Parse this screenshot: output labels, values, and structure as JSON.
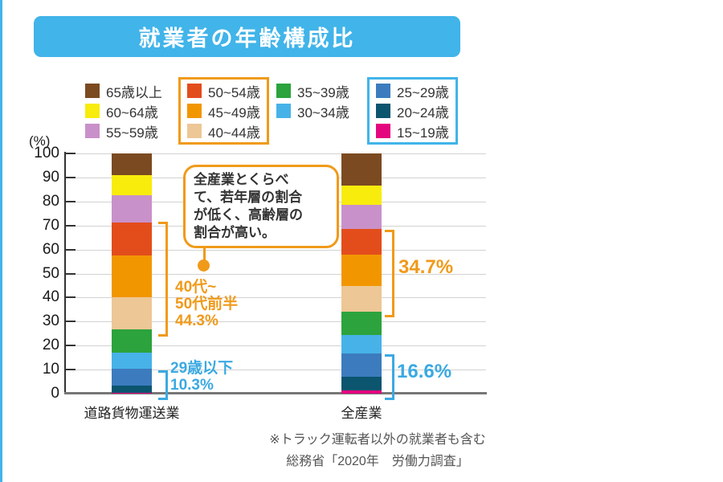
{
  "page": {
    "background": "#ffffff",
    "accent_blue": "#41b4e9",
    "accent_orange": "#f09a1a",
    "bracket_blue": "#3ba9e2"
  },
  "title": {
    "text": "就業者の年齢構成比"
  },
  "legend": {
    "columns": [
      {
        "boxed": false,
        "box_color": null,
        "items": [
          "65歳以上",
          "60~64歳",
          "55~59歳"
        ]
      },
      {
        "boxed": true,
        "box_color": "#f09a1a",
        "items": [
          "50~54歳",
          "45~49歳",
          "40~44歳"
        ]
      },
      {
        "boxed": false,
        "box_color": null,
        "items": [
          "35~39歳",
          "30~34歳"
        ]
      },
      {
        "boxed": true,
        "box_color": "#41b4e9",
        "items": [
          "25~29歳",
          "20~24歳",
          "15~19歳"
        ]
      }
    ]
  },
  "axis": {
    "unit_label": "(%)",
    "yticks": [
      0,
      10,
      20,
      30,
      40,
      50,
      60,
      70,
      80,
      90,
      100
    ],
    "ylim": [
      0,
      100
    ]
  },
  "chart_data": {
    "type": "bar",
    "stacked": true,
    "title": "就業者の年齢構成比",
    "categories": [
      "道路貨物運送業",
      "全産業"
    ],
    "ylabel": "(%)",
    "ylim": [
      0,
      100
    ],
    "grid": true,
    "series_bottom_to_top": [
      {
        "label": "15~19歳",
        "color": "#e4067e",
        "values": [
          0.5,
          1.3
        ]
      },
      {
        "label": "20~24歳",
        "color": "#0b556f",
        "values": [
          3.0,
          5.6
        ]
      },
      {
        "label": "25~29歳",
        "color": "#3c7cbe",
        "values": [
          6.8,
          9.7
        ]
      },
      {
        "label": "30~34歳",
        "color": "#47b2e8",
        "values": [
          6.9,
          7.8
        ]
      },
      {
        "label": "35~39歳",
        "color": "#2ca33c",
        "values": [
          9.7,
          9.6
        ]
      },
      {
        "label": "40~44歳",
        "color": "#edc795",
        "values": [
          13.1,
          11.0
        ]
      },
      {
        "label": "45~49歳",
        "color": "#f29600",
        "values": [
          17.5,
          13.0
        ]
      },
      {
        "label": "50~54歳",
        "color": "#e34d1c",
        "values": [
          13.7,
          10.7
        ]
      },
      {
        "label": "55~59歳",
        "color": "#c991c9",
        "values": [
          11.6,
          10.0
        ]
      },
      {
        "label": "60~64歳",
        "color": "#f8ec0c",
        "values": [
          8.2,
          8.0
        ]
      },
      {
        "label": "65歳以上",
        "color": "#7b4a21",
        "values": [
          9.0,
          13.3
        ]
      }
    ],
    "annotation_sums": [
      {
        "category": "道路貨物運送業",
        "range": "40~54歳",
        "label": "40代~50代前半",
        "value_pct": 44.3
      },
      {
        "category": "道路貨物運送業",
        "range": "15~29歳",
        "label": "29歳以下",
        "value_pct": 10.3
      },
      {
        "category": "全産業",
        "range": "40~54歳",
        "value_pct": 34.7
      },
      {
        "category": "全産業",
        "range": "15~29歳",
        "value_pct": 16.6
      }
    ]
  },
  "callout": {
    "lines": [
      "全産業とくらべ",
      "て、若年層の割合",
      "が低く、高齢層の",
      "割合が高い。"
    ]
  },
  "brackets": {
    "left_orange": {
      "lines": [
        "40代~",
        "50代前半",
        "44.3%"
      ]
    },
    "left_blue": {
      "lines": [
        "29歳以下",
        "10.3%"
      ]
    },
    "right_orange": {
      "label": "34.7%"
    },
    "right_blue": {
      "label": "16.6%"
    }
  },
  "footer": {
    "lines": [
      "※トラック運転者以外の就業者も含む",
      "総務省「2020年　労働力調査」"
    ]
  }
}
